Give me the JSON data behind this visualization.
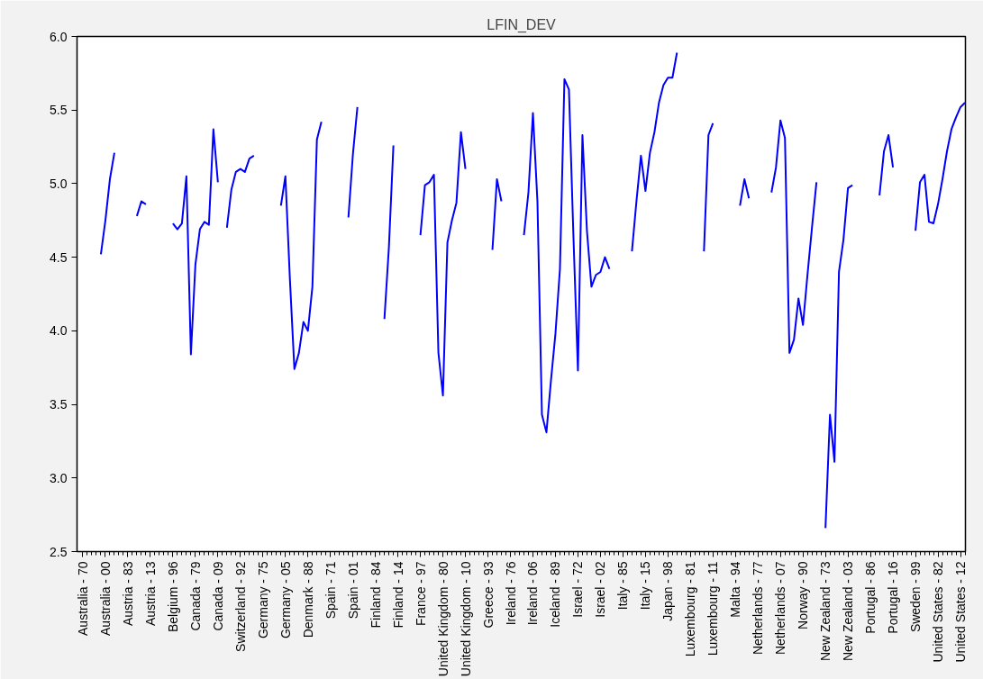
{
  "chart_data": {
    "type": "line",
    "title": "LFIN_DEV",
    "categories": [
      "Australia - 70",
      null,
      null,
      null,
      null,
      "Australia - 00",
      null,
      null,
      null,
      null,
      "Austria - 83",
      null,
      null,
      null,
      null,
      "Austria - 13",
      null,
      null,
      null,
      null,
      "Belgium - 96",
      null,
      null,
      null,
      null,
      "Canada - 79",
      null,
      null,
      null,
      null,
      "Canada - 09",
      null,
      null,
      null,
      null,
      "Switzerland - 92",
      null,
      null,
      null,
      null,
      "Germany - 75",
      null,
      null,
      null,
      null,
      "Germany - 05",
      null,
      null,
      null,
      null,
      "Denmark - 88",
      null,
      null,
      null,
      null,
      "Spain - 71",
      null,
      null,
      null,
      null,
      "Spain - 01",
      null,
      null,
      null,
      null,
      "Finland - 84",
      null,
      null,
      null,
      null,
      "Finland - 14",
      null,
      null,
      null,
      null,
      "France - 97",
      null,
      null,
      null,
      null,
      "United Kingdom - 80",
      null,
      null,
      null,
      null,
      "United Kingdom - 10",
      null,
      null,
      null,
      null,
      "Greece - 93",
      null,
      null,
      null,
      null,
      "Ireland - 76",
      null,
      null,
      null,
      null,
      "Ireland - 06",
      null,
      null,
      null,
      null,
      "Iceland - 89",
      null,
      null,
      null,
      null,
      "Israel - 72",
      null,
      null,
      null,
      null,
      "Israel - 02",
      null,
      null,
      null,
      null,
      "Italy - 85",
      null,
      null,
      null,
      null,
      "Italy - 15",
      null,
      null,
      null,
      null,
      "Japan - 98",
      null,
      null,
      null,
      null,
      "Luxembourg - 81",
      null,
      null,
      null,
      null,
      "Luxembourg - 11",
      null,
      null,
      null,
      null,
      "Malta - 94",
      null,
      null,
      null,
      null,
      "Netherlands - 77",
      null,
      null,
      null,
      null,
      "Netherlands - 07",
      null,
      null,
      null,
      null,
      "Norway - 90",
      null,
      null,
      null,
      null,
      "New Zealand - 73",
      null,
      null,
      null,
      null,
      "New Zealand - 03",
      null,
      null,
      null,
      null,
      "Portugal - 86",
      null,
      null,
      null,
      null,
      "Portugal - 16",
      null,
      null,
      null,
      null,
      "Sweden - 99",
      null,
      null,
      null,
      null,
      "United States - 82",
      null,
      null,
      null,
      null,
      "United States - 12",
      null
    ],
    "series": [
      {
        "color": "#0000ff",
        "values": [
          null,
          null,
          null,
          null,
          4.52,
          4.75,
          5.03,
          5.21,
          null,
          null,
          null,
          null,
          4.78,
          4.88,
          4.86,
          null,
          null,
          null,
          null,
          null,
          4.73,
          4.69,
          4.73,
          5.05,
          3.84,
          4.45,
          4.69,
          4.74,
          4.72,
          5.37,
          5.01,
          null,
          4.7,
          4.96,
          5.08,
          5.1,
          5.08,
          5.17,
          5.19,
          null,
          null,
          null,
          null,
          null,
          4.85,
          5.05,
          4.35,
          3.74,
          3.85,
          4.06,
          4.0,
          4.3,
          5.3,
          5.42,
          null,
          null,
          null,
          null,
          null,
          4.77,
          5.2,
          5.52,
          null,
          null,
          null,
          null,
          null,
          4.08,
          4.57,
          5.26,
          null,
          null,
          null,
          null,
          null,
          4.65,
          4.99,
          5.01,
          5.06,
          3.85,
          3.56,
          4.6,
          4.75,
          4.87,
          5.35,
          5.1,
          null,
          null,
          null,
          null,
          null,
          4.55,
          5.03,
          4.88,
          null,
          null,
          null,
          null,
          4.65,
          4.94,
          5.48,
          4.88,
          3.43,
          3.31,
          3.66,
          3.98,
          4.42,
          5.71,
          5.64,
          4.64,
          3.73,
          5.33,
          4.68,
          4.3,
          4.38,
          4.4,
          4.5,
          4.42,
          null,
          null,
          null,
          null,
          4.54,
          4.88,
          5.19,
          4.95,
          5.21,
          5.35,
          5.55,
          5.67,
          5.72,
          5.72,
          5.89,
          null,
          null,
          null,
          null,
          null,
          4.54,
          5.33,
          5.41,
          null,
          null,
          null,
          null,
          null,
          4.85,
          5.03,
          4.9,
          null,
          null,
          null,
          null,
          4.94,
          5.11,
          5.43,
          5.31,
          3.85,
          3.94,
          4.22,
          4.04,
          4.38,
          4.7,
          5.01,
          null,
          2.66,
          3.43,
          3.11,
          4.4,
          4.62,
          4.97,
          4.99,
          null,
          null,
          null,
          null,
          null,
          4.92,
          5.22,
          5.33,
          5.11,
          null,
          null,
          null,
          null,
          4.68,
          5.01,
          5.06,
          4.74,
          4.73,
          4.86,
          5.03,
          5.22,
          5.37,
          5.45,
          5.52,
          5.55
        ]
      }
    ],
    "ylim": [
      2.5,
      6.0
    ],
    "yticks": [
      2.5,
      {
        "value": 3.0,
        "label": "3.0"
      },
      3.5,
      {
        "value": 4.0,
        "label": "4.0"
      },
      4.5,
      {
        "value": 5.0,
        "label": "5.0"
      },
      5.5,
      {
        "value": 6.0,
        "label": "6.0"
      }
    ],
    "line_style": "solid"
  }
}
